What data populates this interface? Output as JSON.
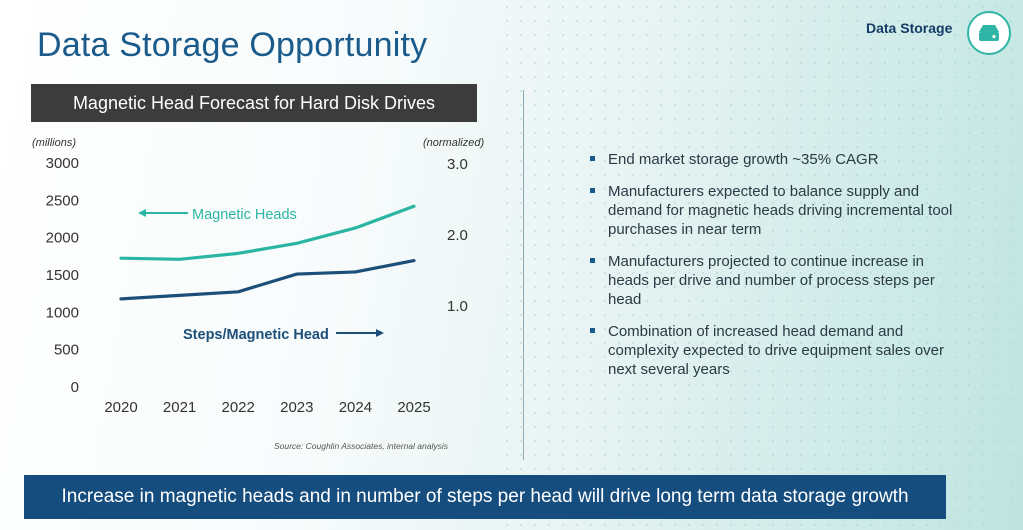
{
  "title": "Data Storage Opportunity",
  "brand": {
    "label": "Data Storage",
    "icon": "hard-drive-icon"
  },
  "chart_header": "Magnetic Head Forecast for Hard Disk Drives",
  "chart_data": {
    "type": "line",
    "x": [
      "2020",
      "2021",
      "2022",
      "2023",
      "2024",
      "2025"
    ],
    "y_left_unit": "(millions)",
    "y_right_unit": "(normalized)",
    "y_left_ticks": [
      "0",
      "500",
      "1000",
      "1500",
      "2000",
      "2500",
      "3000"
    ],
    "y_right_ticks": [
      "1.0",
      "2.0",
      "3.0"
    ],
    "ylim": [
      0,
      3000
    ],
    "series": [
      {
        "name": "Magnetic Heads",
        "axis": "left",
        "color": "#2bb5a3",
        "values": [
          1725,
          1710,
          1790,
          1925,
          2130,
          2420
        ]
      },
      {
        "name": "Steps/Magnetic Head",
        "axis": "right",
        "color": "#1b4f7a",
        "values": [
          1.1,
          1.15,
          1.2,
          1.45,
          1.48,
          1.64
        ]
      }
    ],
    "source": "Source: Coughlin Associates, internal analysis"
  },
  "bullets": [
    "End market storage growth ~35% CAGR",
    "Manufacturers expected to balance supply and demand for magnetic heads driving incremental tool purchases in near term",
    "Manufacturers projected to  continue increase in heads per drive and number of process steps per head",
    "Combination of increased head demand and complexity expected to drive equipment sales over next several years"
  ],
  "banner": "Increase in magnetic heads and in number of steps per head will drive long term data storage growth"
}
